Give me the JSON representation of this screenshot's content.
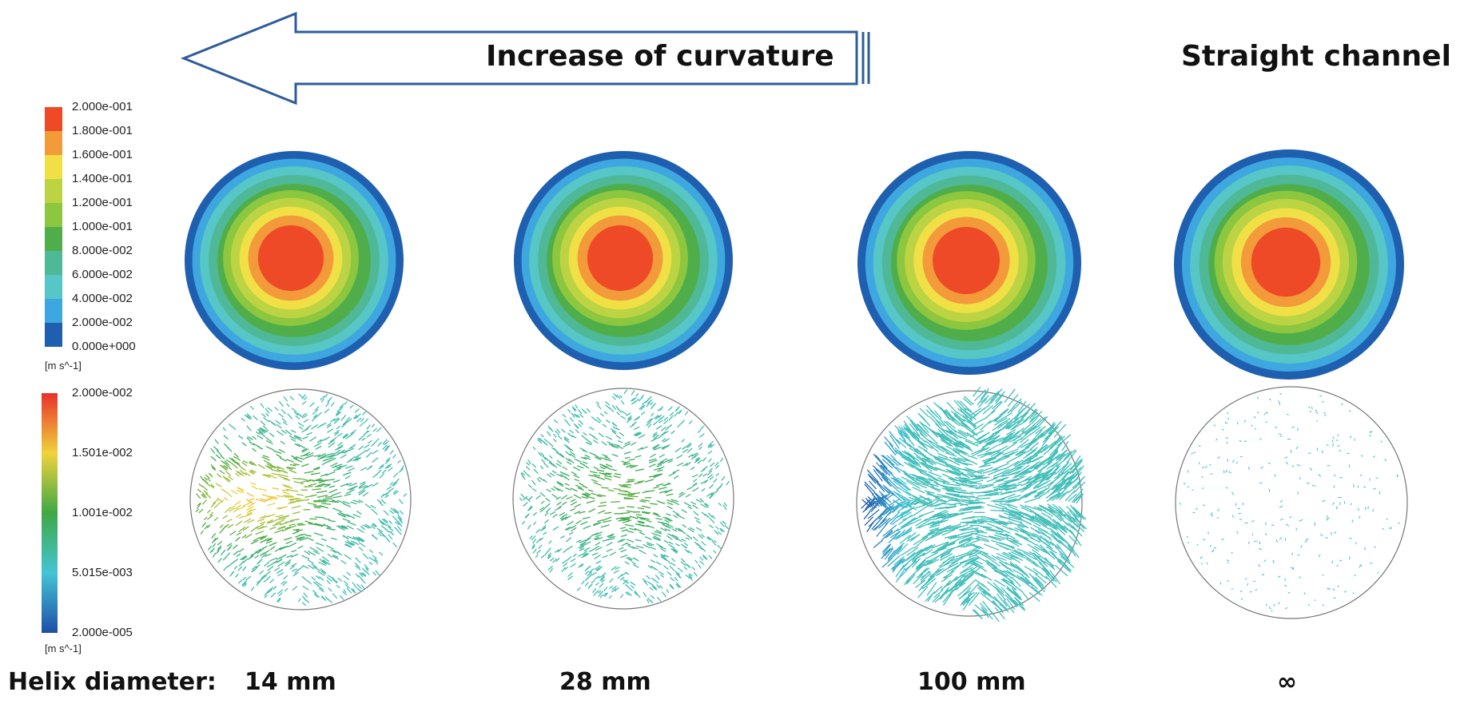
{
  "header": {
    "arrow_label": "Increase of curvature",
    "straight_label": "Straight channel"
  },
  "velocity_colorbar": {
    "labels": [
      "2.000e-001",
      "1.800e-001",
      "1.600e-001",
      "1.400e-001",
      "1.200e-001",
      "1.000e-001",
      "8.000e-002",
      "6.000e-002",
      "4.000e-002",
      "2.000e-002",
      "0.000e+000"
    ],
    "colors": [
      "#ee4a27",
      "#f39a3a",
      "#f0e046",
      "#bcd443",
      "#8dc63f",
      "#4fae4a",
      "#4fb896",
      "#56c6c6",
      "#3fa7df",
      "#1f5fb0"
    ],
    "unit": "[m s^-1]"
  },
  "secondary_colorbar": {
    "labels": [
      "2.000e-002",
      "1.501e-002",
      "1.001e-002",
      "5.015e-003",
      "2.000e-005"
    ],
    "unit": "[m s^-1]"
  },
  "bottom": {
    "prefix": "Helix diameter:",
    "values": [
      "14 mm",
      "28 mm",
      "100 mm",
      "∞"
    ]
  }
}
